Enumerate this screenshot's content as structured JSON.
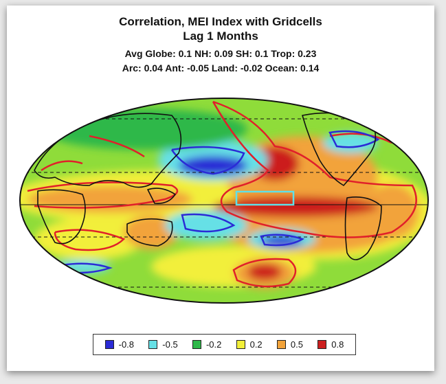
{
  "title_line1": "Correlation, MEI Index with Gridcells",
  "title_line2": "Lag 1 Months",
  "stats_line1": "Avg Globe: 0.1  NH: 0.09  SH: 0.1  Trop: 0.23",
  "stats_line2": "Arc: 0.04  Ant: -0.05  Land: -0.02 Ocean: 0.14",
  "legend": [
    {
      "label": "-0.8",
      "color": "#2b2bd6"
    },
    {
      "label": "-0.5",
      "color": "#66e0e6"
    },
    {
      "label": "-0.2",
      "color": "#2fb84a"
    },
    {
      "label": "0.2",
      "color": "#f2ef3a"
    },
    {
      "label": "0.5",
      "color": "#f2a33a"
    },
    {
      "label": "0.8",
      "color": "#cc1f1f"
    }
  ],
  "colors": {
    "strong_negative": "#2b2bd6",
    "negative": "#66e0e6",
    "weak_negative": "#2fb84a",
    "weak_positive": "#f2ef3a",
    "positive": "#f2a33a",
    "strong_positive": "#cc1f1f",
    "neutral": "#8fdc3a",
    "enso_box": "#5fe0e8",
    "contour_red": "#e0202a",
    "contour_blue": "#2b2bd6"
  }
}
